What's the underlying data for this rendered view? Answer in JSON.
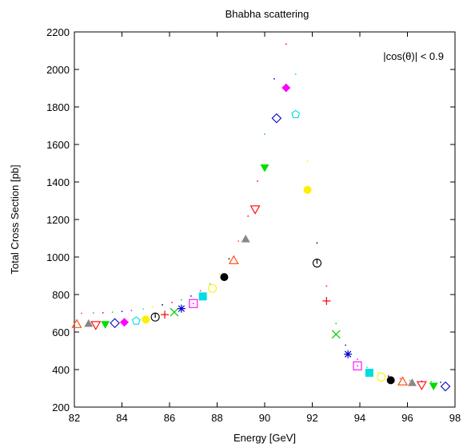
{
  "chart_data": {
    "type": "scatter",
    "title": "Bhabha scattering",
    "annotation": "|cos(θ)| < 0.9",
    "xlabel": "Energy [GeV]",
    "ylabel": "Total Cross Section [pb]",
    "xlim": [
      82,
      98
    ],
    "ylim": [
      200,
      2200
    ],
    "xticks": [
      "82",
      "84",
      "86",
      "88",
      "90",
      "92",
      "94",
      "96",
      "98"
    ],
    "yticks": [
      "200",
      "400",
      "600",
      "800",
      "1000",
      "1200",
      "1400",
      "1600",
      "1800",
      "2000",
      "2200"
    ],
    "grid": false,
    "legend": "none",
    "points": [
      {
        "x": 82.1,
        "y": 642,
        "marker": "triangle-up-open",
        "color": "#ff4400"
      },
      {
        "x": 82.6,
        "y": 645,
        "marker": "triangle-up",
        "color": "#888888"
      },
      {
        "x": 82.9,
        "y": 638,
        "marker": "triangle-down-open",
        "color": "#ff0000"
      },
      {
        "x": 83.3,
        "y": 641,
        "marker": "triangle-down",
        "color": "#00dd00"
      },
      {
        "x": 83.7,
        "y": 648,
        "marker": "diamond-open",
        "color": "#0000cc"
      },
      {
        "x": 84.1,
        "y": 652,
        "marker": "diamond",
        "color": "#ff00ff"
      },
      {
        "x": 84.6,
        "y": 659,
        "marker": "pentagon-open",
        "color": "#00dddd"
      },
      {
        "x": 85.0,
        "y": 667,
        "marker": "circle",
        "color": "#ffee00"
      },
      {
        "x": 85.4,
        "y": 680,
        "marker": "circle-cross-open",
        "color": "#000000"
      },
      {
        "x": 85.8,
        "y": 693,
        "marker": "plus",
        "color": "#ff0000"
      },
      {
        "x": 86.2,
        "y": 706,
        "marker": "cross",
        "color": "#00cc00"
      },
      {
        "x": 86.5,
        "y": 725,
        "marker": "star",
        "color": "#0000cc"
      },
      {
        "x": 87.0,
        "y": 752,
        "marker": "square-dot-open",
        "color": "#ff00ff"
      },
      {
        "x": 87.4,
        "y": 790,
        "marker": "square",
        "color": "#00dddd"
      },
      {
        "x": 87.8,
        "y": 833,
        "marker": "circle-open",
        "color": "#ffee00"
      },
      {
        "x": 88.3,
        "y": 893,
        "marker": "circle",
        "color": "#000000"
      },
      {
        "x": 88.7,
        "y": 982,
        "marker": "triangle-up-open",
        "color": "#ff4400"
      },
      {
        "x": 89.2,
        "y": 1096,
        "marker": "triangle-up",
        "color": "#888888"
      },
      {
        "x": 89.6,
        "y": 1255,
        "marker": "triangle-down-open",
        "color": "#ff0000"
      },
      {
        "x": 90.0,
        "y": 1476,
        "marker": "triangle-down",
        "color": "#00dd00"
      },
      {
        "x": 90.5,
        "y": 1740,
        "marker": "diamond-open",
        "color": "#0000cc"
      },
      {
        "x": 90.9,
        "y": 1902,
        "marker": "diamond",
        "color": "#ff00ff"
      },
      {
        "x": 91.3,
        "y": 1760,
        "marker": "pentagon-open",
        "color": "#00dddd"
      },
      {
        "x": 91.8,
        "y": 1358,
        "marker": "circle",
        "color": "#ffee00"
      },
      {
        "x": 92.2,
        "y": 968,
        "marker": "circle-cross-open",
        "color": "#000000"
      },
      {
        "x": 92.6,
        "y": 766,
        "marker": "plus",
        "color": "#ff0000"
      },
      {
        "x": 93.0,
        "y": 588,
        "marker": "cross",
        "color": "#00cc00"
      },
      {
        "x": 93.5,
        "y": 482,
        "marker": "star",
        "color": "#0000cc"
      },
      {
        "x": 93.9,
        "y": 420,
        "marker": "square-dot-open",
        "color": "#ff00ff"
      },
      {
        "x": 94.4,
        "y": 383,
        "marker": "square",
        "color": "#00dddd"
      },
      {
        "x": 94.9,
        "y": 360,
        "marker": "circle-open",
        "color": "#ffee00"
      },
      {
        "x": 95.3,
        "y": 343,
        "marker": "circle",
        "color": "#000000"
      },
      {
        "x": 95.8,
        "y": 336,
        "marker": "triangle-up-open",
        "color": "#ff4400"
      },
      {
        "x": 96.2,
        "y": 330,
        "marker": "triangle-up",
        "color": "#888888"
      },
      {
        "x": 96.6,
        "y": 318,
        "marker": "triangle-down-open",
        "color": "#ff0000"
      },
      {
        "x": 97.1,
        "y": 312,
        "marker": "triangle-down",
        "color": "#00dd00"
      },
      {
        "x": 97.6,
        "y": 310,
        "marker": "diamond-open",
        "color": "#0000cc"
      }
    ],
    "reference_points": [
      {
        "x": 82.3,
        "y": 700,
        "color": "#ff4400"
      },
      {
        "x": 82.8,
        "y": 702,
        "color": "#888888"
      },
      {
        "x": 83.2,
        "y": 703,
        "color": "#ff0000"
      },
      {
        "x": 83.6,
        "y": 706,
        "color": "#00dd00"
      },
      {
        "x": 84.0,
        "y": 710,
        "color": "#0000cc"
      },
      {
        "x": 84.4,
        "y": 715,
        "color": "#ff00ff"
      },
      {
        "x": 84.9,
        "y": 723,
        "color": "#00dddd"
      },
      {
        "x": 85.3,
        "y": 733,
        "color": "#ffee00"
      },
      {
        "x": 85.7,
        "y": 745,
        "color": "#000000"
      },
      {
        "x": 86.1,
        "y": 758,
        "color": "#ff0000"
      },
      {
        "x": 86.5,
        "y": 772,
        "color": "#00cc00"
      },
      {
        "x": 86.9,
        "y": 792,
        "color": "#0000cc"
      },
      {
        "x": 87.3,
        "y": 820,
        "color": "#ff00ff"
      },
      {
        "x": 87.7,
        "y": 857,
        "color": "#00dddd"
      },
      {
        "x": 88.1,
        "y": 910,
        "color": "#ffee00"
      },
      {
        "x": 88.5,
        "y": 990,
        "color": "#000000"
      },
      {
        "x": 88.9,
        "y": 1085,
        "color": "#ff4400"
      },
      {
        "x": 89.3,
        "y": 1218,
        "color": "#ff0000"
      },
      {
        "x": 89.7,
        "y": 1405,
        "color": "#ff0000"
      },
      {
        "x": 90.0,
        "y": 1655,
        "color": "#00dd00"
      },
      {
        "x": 90.4,
        "y": 1950,
        "color": "#0000cc"
      },
      {
        "x": 90.9,
        "y": 2135,
        "color": "#ff0000"
      },
      {
        "x": 91.3,
        "y": 1975,
        "color": "#00dddd"
      },
      {
        "x": 91.8,
        "y": 1510,
        "color": "#ffee00"
      },
      {
        "x": 92.2,
        "y": 1075,
        "color": "#000000"
      },
      {
        "x": 92.6,
        "y": 845,
        "color": "#ff0000"
      },
      {
        "x": 93.0,
        "y": 645,
        "color": "#00cc00"
      },
      {
        "x": 93.4,
        "y": 530,
        "color": "#0000cc"
      },
      {
        "x": 93.9,
        "y": 455,
        "color": "#ff00ff"
      },
      {
        "x": 94.3,
        "y": 412,
        "color": "#00dddd"
      },
      {
        "x": 94.8,
        "y": 385,
        "color": "#ffee00"
      },
      {
        "x": 95.2,
        "y": 365,
        "color": "#000000"
      },
      {
        "x": 95.7,
        "y": 352,
        "color": "#ff4400"
      },
      {
        "x": 96.1,
        "y": 342,
        "color": "#888888"
      },
      {
        "x": 96.6,
        "y": 338,
        "color": "#ff0000"
      },
      {
        "x": 97.0,
        "y": 335,
        "color": "#00dd00"
      },
      {
        "x": 97.4,
        "y": 332,
        "color": "#0000cc"
      }
    ]
  }
}
